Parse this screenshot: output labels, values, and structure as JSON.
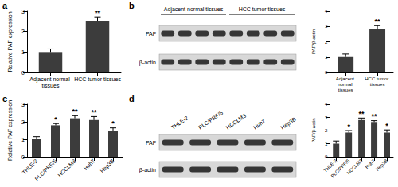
{
  "chart_data": [
    {
      "panel_label": "a",
      "type": "bar",
      "categories": [
        "Adjacent normal tissues",
        "HCC tumor tissues"
      ],
      "values": [
        1.0,
        2.52
      ],
      "errors": [
        0.15,
        0.2
      ],
      "annotations": [
        null,
        "**"
      ],
      "ylabel": "Relative PAF expression",
      "color": "#3c3c3c",
      "ylim": [
        0,
        3
      ],
      "yticks": [
        0,
        1,
        2,
        3
      ],
      "grid": false
    },
    {
      "type": "bar",
      "categories": [
        "Adjacent normal tissues",
        "HCC tumor tissues"
      ],
      "values": [
        1.0,
        2.8
      ],
      "errors": [
        0.2,
        0.25
      ],
      "annotations": [
        null,
        "**"
      ],
      "ylabel": "PAF/β-actin",
      "color": "#3c3c3c",
      "ylim": [
        0,
        4
      ],
      "yticks": [
        0,
        1,
        2,
        3,
        4
      ],
      "grid": false
    },
    {
      "panel_label": "c",
      "type": "bar",
      "categories": [
        "THLE-2",
        "PLC/PRF/5",
        "HCCLM3",
        "Huh7",
        "Hep3B"
      ],
      "values": [
        1.0,
        1.8,
        2.2,
        2.1,
        1.5
      ],
      "errors": [
        0.15,
        0.1,
        0.15,
        0.2,
        0.15
      ],
      "annotations": [
        null,
        "*",
        "**",
        "**",
        "*"
      ],
      "ylabel": "Relative PAF expression",
      "color": "#3c3c3c",
      "ylim": [
        0,
        3
      ],
      "yticks": [
        0,
        1,
        2,
        3
      ],
      "grid": false
    },
    {
      "type": "bar",
      "categories": [
        "THLE-2",
        "PLC/PRF/5",
        "HCCLM3",
        "Huh7",
        "Hep3B"
      ],
      "values": [
        1.0,
        1.85,
        2.8,
        2.65,
        1.85
      ],
      "errors": [
        0.2,
        0.15,
        0.15,
        0.1,
        0.2
      ],
      "annotations": [
        null,
        "*",
        "**",
        "**",
        "*"
      ],
      "ylabel": "PAF/β-actin",
      "color": "#3c3c3c",
      "ylim": [
        0,
        4
      ],
      "yticks": [
        0,
        1,
        2,
        3,
        4
      ],
      "grid": false
    }
  ],
  "blots": [
    {
      "panel_label": "b",
      "groups": [
        {
          "label": "Adjacent normal tissues",
          "lanes": 4
        },
        {
          "label": "HCC tumor tissues",
          "lanes": 4
        }
      ],
      "rows": [
        "PAF",
        "β-actin"
      ]
    },
    {
      "panel_label": "d",
      "lanes": [
        "THLE-2",
        "PLC/PRF/5",
        "HCCLM3",
        "Huh7",
        "Hep3B"
      ],
      "rows": [
        "PAF",
        "β-actin"
      ]
    }
  ]
}
